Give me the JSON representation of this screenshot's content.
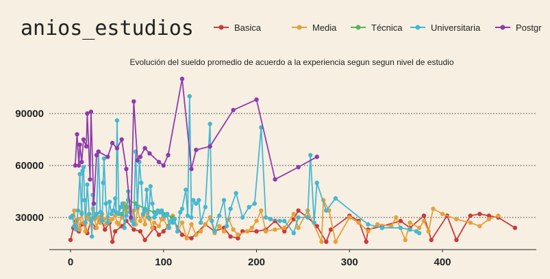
{
  "chart_data": {
    "type": "line",
    "title": "anios_estudios",
    "subtitle": "Evolución del sueldo promedio de acuerdo a la experiencia segun segun nivel de estudio",
    "xlabel": "",
    "ylabel": "",
    "xlim": [
      -10,
      500
    ],
    "ylim": [
      8000,
      118000
    ],
    "x_ticks": [
      "0",
      "100",
      "200",
      "300",
      "400"
    ],
    "y_ticks": [
      "30000",
      "60000",
      "90000"
    ],
    "grid": "horizontal dotted",
    "legend_position": "top",
    "legend_visible": [
      "Basica",
      "Media",
      "Técnica",
      "Universitaria",
      "Postgr"
    ],
    "series": [
      {
        "name": "Basica",
        "color": "#c93a3a",
        "points": [
          [
            0,
            17000
          ],
          [
            3,
            24000
          ],
          [
            6,
            28000
          ],
          [
            9,
            22000
          ],
          [
            12,
            26000
          ],
          [
            15,
            27000
          ],
          [
            18,
            21000
          ],
          [
            22,
            28000
          ],
          [
            27,
            24000
          ],
          [
            32,
            30000
          ],
          [
            37,
            23000
          ],
          [
            42,
            27000
          ],
          [
            45,
            16000
          ],
          [
            48,
            22000
          ],
          [
            55,
            25000
          ],
          [
            60,
            28000
          ],
          [
            68,
            23000
          ],
          [
            75,
            22000
          ],
          [
            80,
            17000
          ],
          [
            90,
            24000
          ],
          [
            95,
            20000
          ],
          [
            100,
            22000
          ],
          [
            105,
            25000
          ],
          [
            110,
            29000
          ],
          [
            120,
            20000
          ],
          [
            130,
            18000
          ],
          [
            145,
            26000
          ],
          [
            155,
            22000
          ],
          [
            165,
            24000
          ],
          [
            172,
            19000
          ],
          [
            180,
            18000
          ],
          [
            185,
            22000
          ],
          [
            200,
            22000
          ],
          [
            210,
            23000
          ],
          [
            220,
            28000
          ],
          [
            230,
            22000
          ],
          [
            240,
            29000
          ],
          [
            245,
            34000
          ],
          [
            255,
            30000
          ],
          [
            265,
            25000
          ],
          [
            275,
            16000
          ],
          [
            280,
            23000
          ],
          [
            300,
            31000
          ],
          [
            310,
            28000
          ],
          [
            318,
            16000
          ],
          [
            320,
            23000
          ],
          [
            335,
            25000
          ],
          [
            355,
            28000
          ],
          [
            365,
            24000
          ],
          [
            380,
            31000
          ],
          [
            388,
            17000
          ],
          [
            405,
            31000
          ],
          [
            415,
            17000
          ],
          [
            430,
            31000
          ],
          [
            440,
            32000
          ],
          [
            450,
            31000
          ],
          [
            460,
            30000
          ],
          [
            478,
            24000
          ]
        ]
      },
      {
        "name": "Media",
        "color": "#e5a13a",
        "points": [
          [
            2,
            30000
          ],
          [
            4,
            34000
          ],
          [
            6,
            24000
          ],
          [
            8,
            29000
          ],
          [
            10,
            23000
          ],
          [
            12,
            33000
          ],
          [
            14,
            27000
          ],
          [
            16,
            22000
          ],
          [
            18,
            31000
          ],
          [
            20,
            29000
          ],
          [
            22,
            26000
          ],
          [
            24,
            35000
          ],
          [
            26,
            29000
          ],
          [
            28,
            24000
          ],
          [
            30,
            30000
          ],
          [
            32,
            27000
          ],
          [
            34,
            32000
          ],
          [
            36,
            29000
          ],
          [
            38,
            26000
          ],
          [
            40,
            30000
          ],
          [
            42,
            28000
          ],
          [
            45,
            29000
          ],
          [
            48,
            31000
          ],
          [
            50,
            27000
          ],
          [
            52,
            26000
          ],
          [
            55,
            30000
          ],
          [
            58,
            38000
          ],
          [
            60,
            33000
          ],
          [
            62,
            36000
          ],
          [
            65,
            29000
          ],
          [
            68,
            34000
          ],
          [
            70,
            26000
          ],
          [
            72,
            35000
          ],
          [
            75,
            28000
          ],
          [
            78,
            31000
          ],
          [
            80,
            26000
          ],
          [
            82,
            33000
          ],
          [
            85,
            29000
          ],
          [
            88,
            24000
          ],
          [
            90,
            27000
          ],
          [
            95,
            25000
          ],
          [
            98,
            29000
          ],
          [
            100,
            29000
          ],
          [
            105,
            24000
          ],
          [
            110,
            31000
          ],
          [
            115,
            22000
          ],
          [
            120,
            27000
          ],
          [
            125,
            18000
          ],
          [
            130,
            26000
          ],
          [
            135,
            20000
          ],
          [
            140,
            22000
          ],
          [
            145,
            26000
          ],
          [
            150,
            30000
          ],
          [
            155,
            21000
          ],
          [
            160,
            25000
          ],
          [
            165,
            22000
          ],
          [
            170,
            29000
          ],
          [
            175,
            23000
          ],
          [
            180,
            20000
          ],
          [
            190,
            22000
          ],
          [
            195,
            24000
          ],
          [
            200,
            28000
          ],
          [
            205,
            34000
          ],
          [
            210,
            22000
          ],
          [
            220,
            23000
          ],
          [
            230,
            24000
          ],
          [
            240,
            32000
          ],
          [
            245,
            24000
          ],
          [
            255,
            34000
          ],
          [
            270,
            16000
          ],
          [
            272,
            40000
          ],
          [
            278,
            34000
          ],
          [
            285,
            16000
          ],
          [
            300,
            30000
          ],
          [
            310,
            27000
          ],
          [
            320,
            22000
          ],
          [
            330,
            26000
          ],
          [
            345,
            25000
          ],
          [
            350,
            30000
          ],
          [
            360,
            17000
          ],
          [
            365,
            27000
          ],
          [
            375,
            24000
          ],
          [
            380,
            28000
          ],
          [
            385,
            22000
          ],
          [
            390,
            35000
          ],
          [
            400,
            32000
          ],
          [
            415,
            29000
          ],
          [
            430,
            27000
          ],
          [
            440,
            25000
          ],
          [
            450,
            29000
          ],
          [
            460,
            31000
          ]
        ]
      },
      {
        "name": "Técnica",
        "color": "#5ab55a",
        "points": [
          [
            55,
            32000
          ],
          [
            60,
            36000
          ],
          [
            62,
            40000
          ],
          [
            70,
            38000
          ],
          [
            80,
            35000
          ],
          [
            90,
            33000
          ],
          [
            100,
            32000
          ],
          [
            110,
            30000
          ]
        ]
      },
      {
        "name": "Universitaria",
        "color": "#45b7d1",
        "points": [
          [
            0,
            30000
          ],
          [
            2,
            31000
          ],
          [
            4,
            25000
          ],
          [
            6,
            23000
          ],
          [
            8,
            34000
          ],
          [
            10,
            55000
          ],
          [
            12,
            32000
          ],
          [
            13,
            57000
          ],
          [
            14,
            59000
          ],
          [
            15,
            40000
          ],
          [
            16,
            27000
          ],
          [
            18,
            49000
          ],
          [
            20,
            32000
          ],
          [
            22,
            28000
          ],
          [
            23,
            19000
          ],
          [
            24,
            43000
          ],
          [
            26,
            30000
          ],
          [
            28,
            32000
          ],
          [
            30,
            68000
          ],
          [
            32,
            33000
          ],
          [
            34,
            28000
          ],
          [
            35,
            50000
          ],
          [
            36,
            64000
          ],
          [
            38,
            38000
          ],
          [
            40,
            27000
          ],
          [
            42,
            39000
          ],
          [
            44,
            32000
          ],
          [
            46,
            34000
          ],
          [
            48,
            41000
          ],
          [
            49,
            33000
          ],
          [
            50,
            86000
          ],
          [
            52,
            32000
          ],
          [
            54,
            36000
          ],
          [
            56,
            38000
          ],
          [
            58,
            24000
          ],
          [
            60,
            31000
          ],
          [
            62,
            45000
          ],
          [
            64,
            33000
          ],
          [
            66,
            28000
          ],
          [
            68,
            26000
          ],
          [
            70,
            68000
          ],
          [
            72,
            36000
          ],
          [
            74,
            62000
          ],
          [
            76,
            50000
          ],
          [
            78,
            32000
          ],
          [
            80,
            34000
          ],
          [
            82,
            46000
          ],
          [
            84,
            30000
          ],
          [
            86,
            48000
          ],
          [
            88,
            38000
          ],
          [
            90,
            30000
          ],
          [
            92,
            32000
          ],
          [
            94,
            34000
          ],
          [
            96,
            33000
          ],
          [
            98,
            34000
          ],
          [
            100,
            31000
          ],
          [
            102,
            31000
          ],
          [
            104,
            32000
          ],
          [
            106,
            24000
          ],
          [
            108,
            28000
          ],
          [
            110,
            27000
          ],
          [
            112,
            29000
          ],
          [
            115,
            22000
          ],
          [
            118,
            33000
          ],
          [
            120,
            35000
          ],
          [
            124,
            46000
          ],
          [
            126,
            31000
          ],
          [
            128,
            100000
          ],
          [
            130,
            30000
          ],
          [
            132,
            40000
          ],
          [
            135,
            38000
          ],
          [
            138,
            40000
          ],
          [
            140,
            27000
          ],
          [
            145,
            36000
          ],
          [
            150,
            84000
          ],
          [
            152,
            28000
          ],
          [
            155,
            22000
          ],
          [
            160,
            31000
          ],
          [
            165,
            40000
          ],
          [
            168,
            25000
          ],
          [
            172,
            35000
          ],
          [
            178,
            44000
          ],
          [
            185,
            30000
          ],
          [
            192,
            36000
          ],
          [
            198,
            38000
          ],
          [
            205,
            82000
          ],
          [
            210,
            30000
          ],
          [
            215,
            29000
          ],
          [
            225,
            28000
          ],
          [
            230,
            28000
          ],
          [
            240,
            21000
          ],
          [
            245,
            30000
          ],
          [
            255,
            30000
          ],
          [
            258,
            66000
          ],
          [
            262,
            27000
          ],
          [
            265,
            50000
          ],
          [
            275,
            34000
          ],
          [
            285,
            41000
          ],
          [
            320,
            26000
          ],
          [
            335,
            24000
          ],
          [
            355,
            24000
          ],
          [
            365,
            23000
          ],
          [
            372,
            22000
          ],
          [
            375,
            21000
          ]
        ]
      },
      {
        "name": "Postgrado",
        "color": "#8e3bab",
        "points": [
          [
            5,
            60000
          ],
          [
            7,
            78000
          ],
          [
            9,
            60000
          ],
          [
            10,
            72000
          ],
          [
            12,
            62000
          ],
          [
            14,
            75000
          ],
          [
            17,
            71000
          ],
          [
            18,
            90000
          ],
          [
            21,
            52000
          ],
          [
            22,
            91000
          ],
          [
            25,
            38000
          ],
          [
            28,
            66000
          ],
          [
            30,
            68000
          ],
          [
            40,
            65000
          ],
          [
            45,
            73000
          ],
          [
            50,
            70000
          ],
          [
            55,
            75000
          ],
          [
            60,
            58000
          ],
          [
            65,
            30000
          ],
          [
            68,
            97000
          ],
          [
            72,
            63000
          ],
          [
            75,
            65000
          ],
          [
            80,
            70000
          ],
          [
            85,
            67000
          ],
          [
            95,
            62000
          ],
          [
            100,
            60000
          ],
          [
            105,
            66000
          ],
          [
            120,
            110000
          ],
          [
            130,
            58000
          ],
          [
            135,
            69000
          ],
          [
            150,
            71000
          ],
          [
            175,
            92000
          ],
          [
            200,
            98000
          ],
          [
            220,
            52000
          ],
          [
            245,
            59000
          ],
          [
            265,
            65000
          ]
        ]
      }
    ]
  }
}
